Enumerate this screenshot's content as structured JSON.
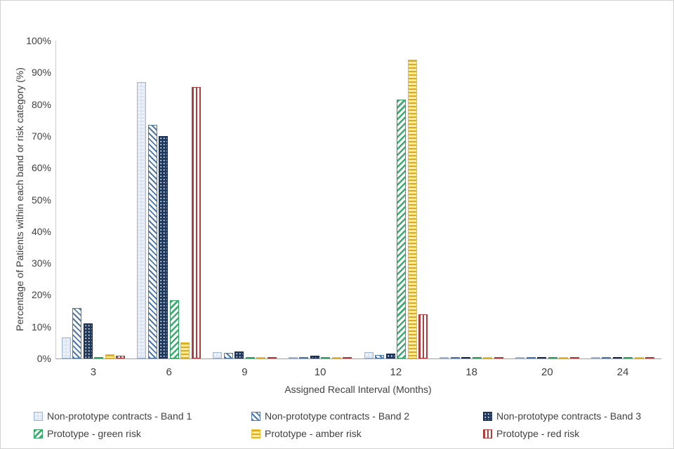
{
  "chart_data": {
    "type": "bar",
    "title": "",
    "xlabel": "Assigned Recall Interval (Months)",
    "ylabel": "Percentage of Patients within each band or risk category (%)",
    "categories": [
      "3",
      "6",
      "9",
      "10",
      "12",
      "18",
      "20",
      "24"
    ],
    "ytick_labels": [
      "0%",
      "10%",
      "20%",
      "30%",
      "40%",
      "50%",
      "60%",
      "70%",
      "80%",
      "90%",
      "100%"
    ],
    "ylim": [
      0,
      100
    ],
    "grid": false,
    "legend_position": "bottom",
    "series": [
      {
        "name": "Non-prototype contracts - Band 1",
        "pattern": "band1",
        "color": "#dde6f2",
        "values": [
          6.7,
          87,
          2,
          0.2,
          2,
          0.2,
          0.2,
          0.1
        ]
      },
      {
        "name": "Non-prototype contracts - Band 2",
        "pattern": "band2",
        "color": "#4a77a8",
        "values": [
          16,
          73.5,
          1.8,
          0.5,
          1.2,
          0.3,
          0.3,
          0.3
        ]
      },
      {
        "name": "Non-prototype contracts - Band 3",
        "pattern": "band3",
        "color": "#203a60",
        "values": [
          11,
          70,
          2.2,
          0.8,
          1.6,
          0.2,
          0.3,
          0.3
        ]
      },
      {
        "name": "Prototype - green risk",
        "pattern": "green",
        "color": "#3dab6e",
        "values": [
          0.3,
          18.3,
          0.2,
          0.4,
          81.5,
          0.1,
          0.3,
          0.5
        ]
      },
      {
        "name": "Prototype - amber risk",
        "pattern": "amber",
        "color": "#e9bc31",
        "values": [
          1.4,
          5,
          0.3,
          0.2,
          94,
          0.3,
          0.1,
          0.1
        ]
      },
      {
        "name": "Prototype - red risk",
        "pattern": "red",
        "color": "#b03d3d",
        "values": [
          0.8,
          85.5,
          0.2,
          0.3,
          14,
          0.1,
          0.1,
          0.1
        ]
      }
    ]
  }
}
